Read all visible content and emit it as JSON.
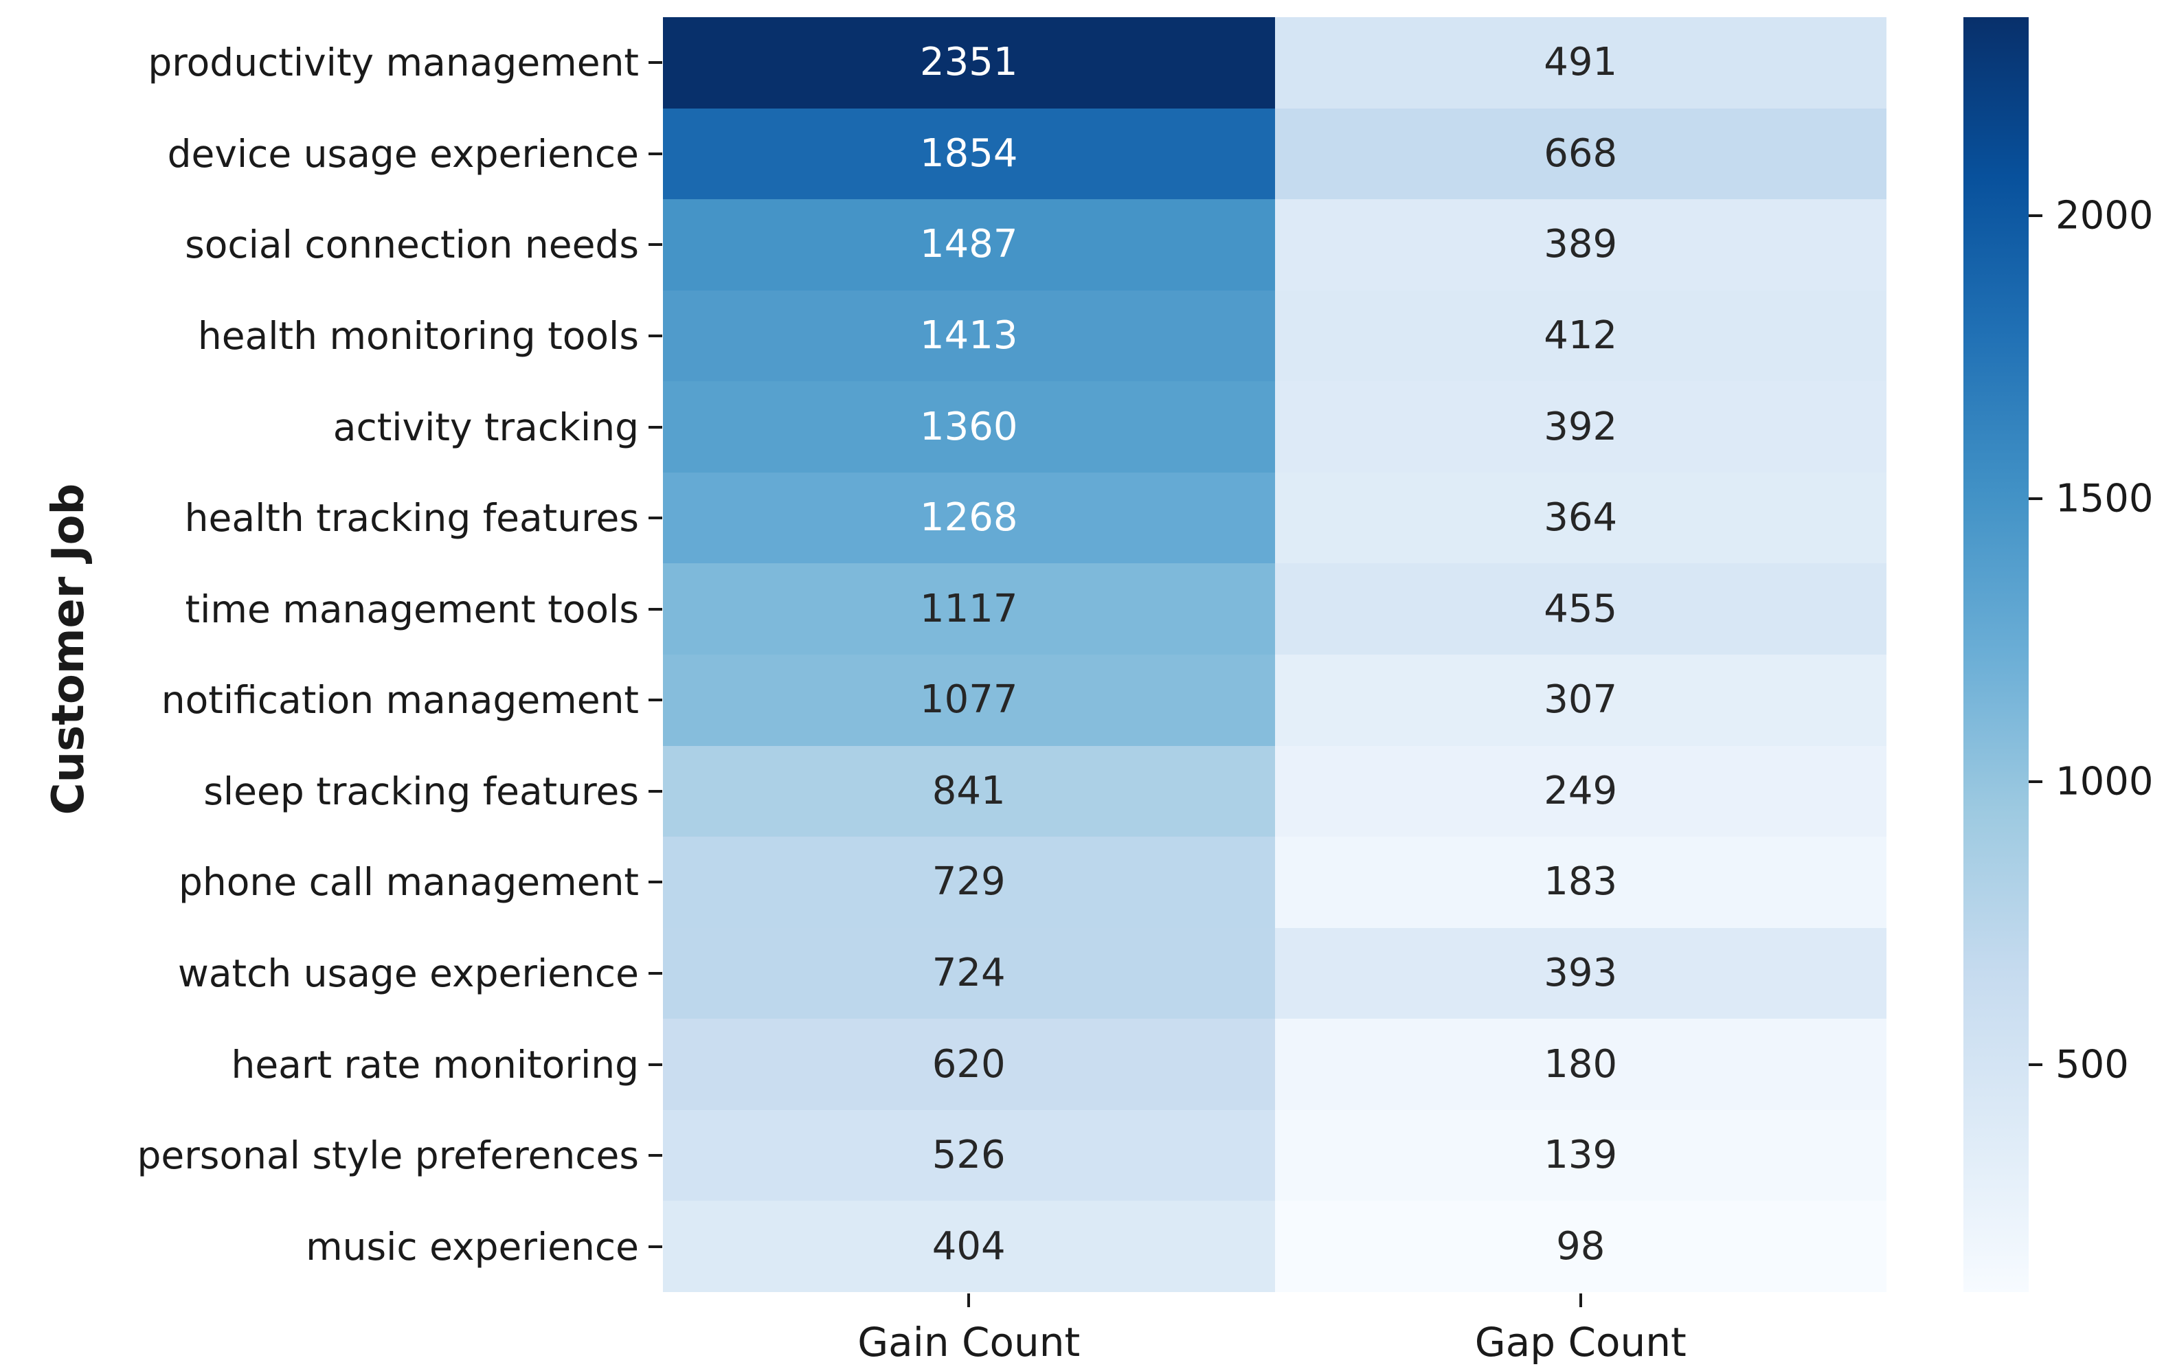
{
  "chart_data": {
    "type": "heatmap",
    "title": "",
    "xlabel": "",
    "ylabel": "Customer Job",
    "columns": [
      "Gain Count",
      "Gap Count"
    ],
    "rows": [
      "productivity management",
      "device usage experience",
      "social connection needs",
      "health monitoring tools",
      "activity tracking",
      "health tracking features",
      "time management tools",
      "notification management",
      "sleep tracking features",
      "phone call management",
      "watch usage experience",
      "heart rate monitoring",
      "personal style preferences",
      "music experience"
    ],
    "values": [
      [
        2351,
        491
      ],
      [
        1854,
        668
      ],
      [
        1487,
        389
      ],
      [
        1413,
        412
      ],
      [
        1360,
        392
      ],
      [
        1268,
        364
      ],
      [
        1117,
        455
      ],
      [
        1077,
        307
      ],
      [
        841,
        249
      ],
      [
        729,
        183
      ],
      [
        724,
        393
      ],
      [
        620,
        180
      ],
      [
        526,
        139
      ],
      [
        404,
        98
      ]
    ],
    "vmin": 98,
    "vmax": 2351,
    "colormap": "Blues",
    "colormap_anchors": [
      {
        "t": 0.0,
        "hex": "#f7fbff"
      },
      {
        "t": 0.125,
        "hex": "#deebf7"
      },
      {
        "t": 0.25,
        "hex": "#c6dbef"
      },
      {
        "t": 0.375,
        "hex": "#9ecae1"
      },
      {
        "t": 0.5,
        "hex": "#6baed6"
      },
      {
        "t": 0.625,
        "hex": "#4292c6"
      },
      {
        "t": 0.75,
        "hex": "#2171b5"
      },
      {
        "t": 0.875,
        "hex": "#08519c"
      },
      {
        "t": 1.0,
        "hex": "#08306b"
      }
    ],
    "colorbar_ticks": [
      2000,
      1500,
      1000,
      500
    ],
    "annotation_colors": {
      "light": "#ffffff",
      "dark": "#262626"
    },
    "axis_text_color": "#1a1a1a",
    "legend_position": "right-colorbar",
    "grid": false,
    "annotated": true
  }
}
